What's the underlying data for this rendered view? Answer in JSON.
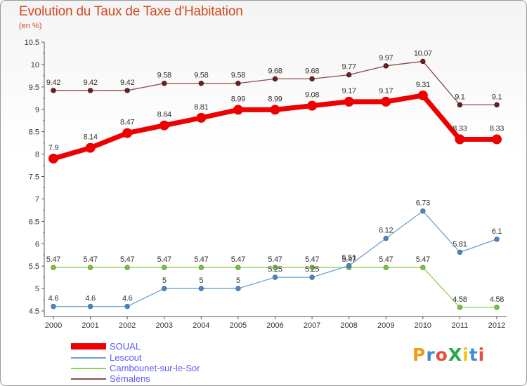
{
  "header": {
    "title": "Evolution du Taux de Taxe d'Habitation",
    "subtitle": "(en %)"
  },
  "logo": {
    "text": "ProXiti",
    "colors": [
      "#f39c12",
      "#3a8fd6",
      "#e74c3c",
      "#2aa84a",
      "#f1c40f",
      "#3a8fd6",
      "#e74c3c"
    ]
  },
  "chart_data": {
    "type": "line",
    "title": "Evolution du Taux de Taxe d'Habitation",
    "subtitle": "(en %)",
    "x": [
      "2000",
      "2001",
      "2002",
      "2003",
      "2004",
      "2005",
      "2006",
      "2007",
      "2008",
      "2009",
      "2010",
      "2011",
      "2012"
    ],
    "ylim": [
      4.5,
      10.5
    ],
    "yticks": [
      "4.5",
      "5",
      "5.5",
      "6",
      "6.5",
      "7",
      "7.5",
      "8",
      "8.5",
      "9",
      "9.5",
      "10",
      "10.5"
    ],
    "grid": false,
    "legend_position": "bottom-left",
    "series": [
      {
        "name": "SOUAL",
        "color": "#ee0000",
        "values": [
          7.9,
          8.14,
          8.47,
          8.64,
          8.81,
          8.99,
          8.99,
          9.08,
          9.17,
          9.17,
          9.31,
          8.33,
          8.33
        ],
        "labels": [
          "7.9",
          "8.14",
          "8.47",
          "8.64",
          "8.81",
          "8.99",
          "8.99",
          "9.08",
          "9.17",
          "9.17",
          "9.31",
          "8.33",
          "8.33"
        ]
      },
      {
        "name": "Lescout",
        "color": "#6aa0d4",
        "values": [
          4.6,
          4.6,
          4.6,
          5,
          5,
          5,
          5.25,
          5.25,
          5.51,
          6.12,
          6.73,
          5.81,
          6.1
        ],
        "labels": [
          "4.6",
          "4.6",
          "4.6",
          "5",
          "5",
          "5",
          "5.25",
          "5.25",
          "5.51",
          "6.12",
          "6.73",
          "5.81",
          "6.1"
        ]
      },
      {
        "name": "Cambounet-sur-le-Sor",
        "color": "#8fd45a",
        "values": [
          5.47,
          5.47,
          5.47,
          5.47,
          5.47,
          5.47,
          5.47,
          5.47,
          5.47,
          5.47,
          5.47,
          4.58,
          4.58
        ],
        "labels": [
          "5.47",
          "5.47",
          "5.47",
          "5.47",
          "5.47",
          "5.47",
          "5.47",
          "5.47",
          "5.47",
          "5.47",
          "5.47",
          "4.58",
          "4.58"
        ]
      },
      {
        "name": "Sémalens",
        "color": "#8a4a4a",
        "values": [
          9.42,
          9.42,
          9.42,
          9.58,
          9.58,
          9.58,
          9.68,
          9.68,
          9.77,
          9.97,
          10.07,
          9.1,
          9.1
        ],
        "labels": [
          "9.42",
          "9.42",
          "9.42",
          "9.58",
          "9.58",
          "9.58",
          "9.68",
          "9.68",
          "9.77",
          "9.97",
          "10.07",
          "9.1",
          "9.1"
        ]
      }
    ]
  }
}
